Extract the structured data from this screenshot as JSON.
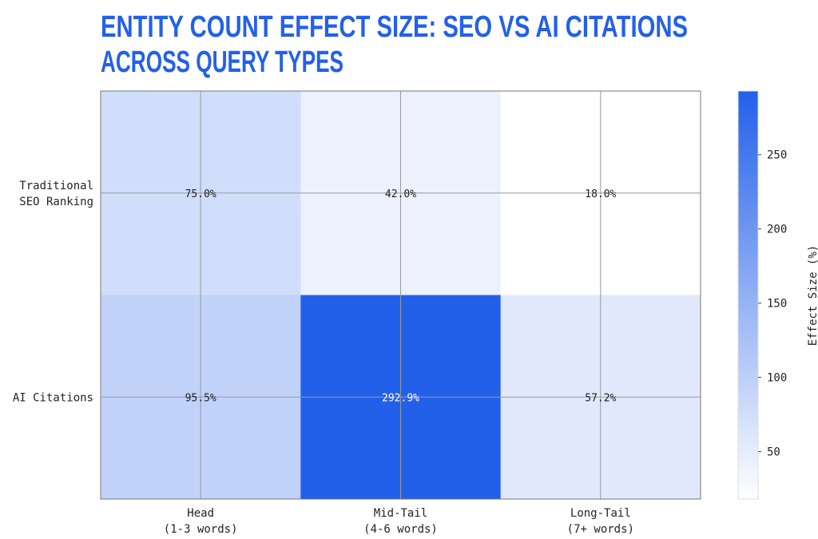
{
  "chart_data": {
    "type": "heatmap",
    "title": "ENTITY COUNT EFFECT SIZE: SEO VS AI CITATIONS ACROSS QUERY TYPES",
    "title_lines": [
      "ENTITY COUNT EFFECT SIZE: SEO VS AI CITATIONS",
      "ACROSS QUERY TYPES"
    ],
    "x_categories": [
      [
        "Head",
        "(1-3 words)"
      ],
      [
        "Mid-Tail",
        "(4-6 words)"
      ],
      [
        "Long-Tail",
        "(7+ words)"
      ]
    ],
    "y_categories": [
      [
        "Traditional",
        "SEO Ranking"
      ],
      [
        "AI Citations"
      ]
    ],
    "values": [
      [
        75.0,
        42.0,
        18.0
      ],
      [
        95.5,
        292.9,
        57.2
      ]
    ],
    "cell_labels": [
      [
        "75.0%",
        "42.0%",
        "18.0%"
      ],
      [
        "95.5%",
        "292.9%",
        "57.2%"
      ]
    ],
    "colorbar": {
      "label": "Effect Size (%)",
      "range": [
        18.0,
        292.9
      ],
      "ticks": [
        50,
        100,
        150,
        200,
        250
      ],
      "color_low": "#ffffff",
      "color_high": "#2360ea"
    },
    "grid": true,
    "title_color": "#2360ea"
  }
}
